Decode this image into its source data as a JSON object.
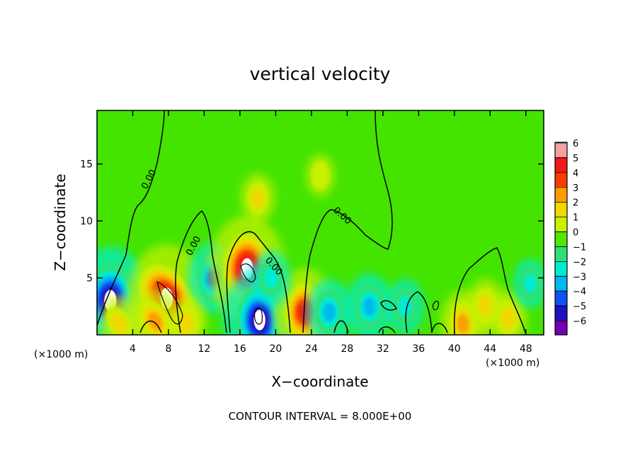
{
  "chart_data": {
    "type": "heatmap",
    "title": "vertical velocity",
    "xlabel": "X−coordinate",
    "ylabel": "Z−coordinate",
    "x_unit": "(×1000 m)",
    "y_unit": "(×1000 m)",
    "xlim": [
      0,
      50
    ],
    "ylim": [
      0,
      19.7
    ],
    "x_ticks": [
      4,
      8,
      12,
      16,
      20,
      24,
      28,
      32,
      36,
      40,
      44,
      48
    ],
    "y_ticks": [
      5,
      10,
      15
    ],
    "colorbar": {
      "min": -6,
      "max": 6,
      "ticks": [
        6,
        5,
        4,
        3,
        2,
        1,
        0,
        -1,
        -2,
        -3,
        -4,
        -5,
        -6
      ],
      "tick_labels": [
        "6",
        "5",
        "4",
        "3",
        "2",
        "1",
        "0",
        "−1",
        "−2",
        "−3",
        "−4",
        "−5",
        "−6"
      ],
      "colors": [
        "#f4a0a0",
        "#f01818",
        "#f83c00",
        "#ff9c00",
        "#f0d800",
        "#c8f000",
        "#50e800",
        "#30e070",
        "#00ecd0",
        "#00b8f0",
        "#1050f0",
        "#2010c0",
        "#7000b0"
      ]
    },
    "contour_label": "0.00",
    "contour_interval_text": "CONTOUR INTERVAL = 8.000E+00",
    "features": [
      {
        "x": 1.5,
        "z": 3.0,
        "value": -7
      },
      {
        "x": 7.8,
        "z": 3.2,
        "value": 7
      },
      {
        "x": 13.0,
        "z": 5.0,
        "value": -3.5
      },
      {
        "x": 16.8,
        "z": 5.8,
        "value": 6.8
      },
      {
        "x": 18.2,
        "z": 1.3,
        "value": -6.5
      },
      {
        "x": 23.2,
        "z": 2.0,
        "value": 5
      },
      {
        "x": 2.5,
        "z": 1.0,
        "value": 2
      },
      {
        "x": 6.5,
        "z": 1.2,
        "value": 3
      },
      {
        "x": 10.0,
        "z": 1.0,
        "value": 2
      },
      {
        "x": 19.5,
        "z": 5.0,
        "value": -2
      },
      {
        "x": 26.0,
        "z": 2.0,
        "value": -3
      },
      {
        "x": 30.5,
        "z": 2.5,
        "value": -3
      },
      {
        "x": 34.5,
        "z": 2.5,
        "value": -2
      },
      {
        "x": 41.0,
        "z": 1.0,
        "value": 3
      },
      {
        "x": 43.5,
        "z": 2.5,
        "value": 2
      },
      {
        "x": 46.0,
        "z": 1.5,
        "value": 2
      },
      {
        "x": 48.5,
        "z": 4.5,
        "value": -1.5
      },
      {
        "x": 18.0,
        "z": 12.0,
        "value": 1.5
      },
      {
        "x": 25.0,
        "z": 14.0,
        "value": 0.8
      }
    ]
  }
}
